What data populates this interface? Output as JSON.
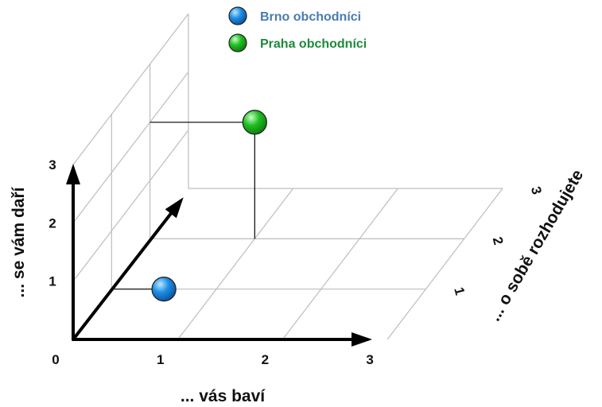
{
  "chart_data": {
    "type": "scatter",
    "projection": "3d",
    "xlabel": "... vás baví",
    "ylabel": "... se vám daří",
    "zlabel": "... o sobě rozhodujete",
    "xlim": [
      0,
      3
    ],
    "ylim": [
      0,
      3
    ],
    "zlim": [
      0,
      3
    ],
    "x_ticks": [
      "0",
      "1",
      "2",
      "3"
    ],
    "y_ticks": [
      "1",
      "2",
      "3"
    ],
    "z_ticks": [
      "1",
      "2",
      "3"
    ],
    "grid": true,
    "legend_position": "top",
    "series": [
      {
        "name": "Brno obchodníci",
        "color": "#1E90E6",
        "label_color": "#4A7CB0",
        "points": [
          {
            "x": 0.5,
            "y": 0,
            "z": 1
          }
        ]
      },
      {
        "name": "Praha obchodníci",
        "color": "#22C022",
        "label_color": "#1E8A3C",
        "points": [
          {
            "x": 1,
            "y": 2,
            "z": 2
          }
        ]
      }
    ]
  }
}
